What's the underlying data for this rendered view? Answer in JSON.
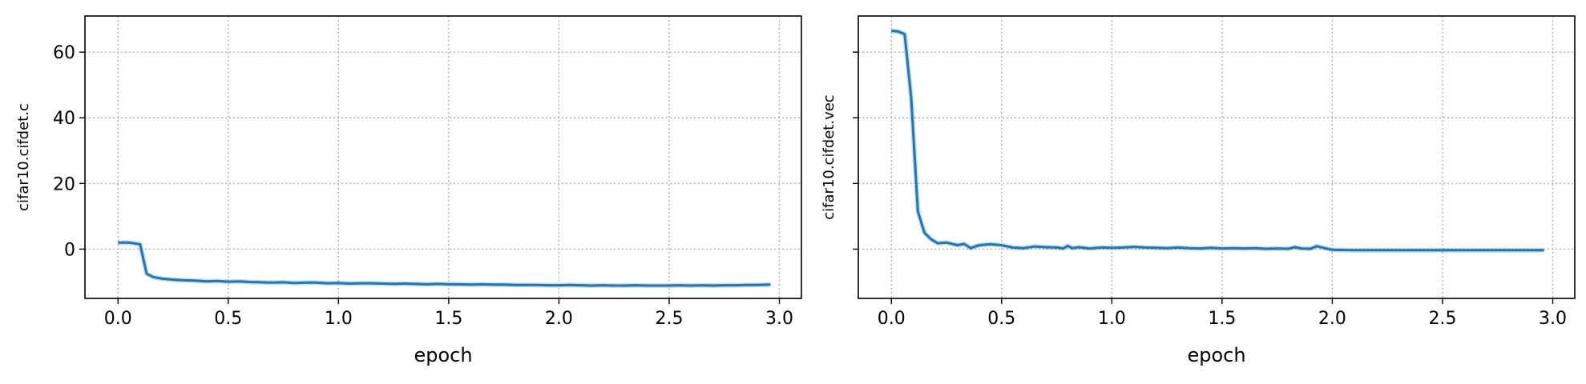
{
  "chart_data": [
    {
      "type": "line",
      "xlabel": "epoch",
      "ylabel": "cifar10.cifdet.c",
      "xlim": [
        -0.15,
        3.1
      ],
      "ylim": [
        -15,
        71
      ],
      "xticks": [
        0.0,
        0.5,
        1.0,
        1.5,
        2.0,
        2.5,
        3.0
      ],
      "xtick_labels": [
        "0.0",
        "0.5",
        "1.0",
        "1.5",
        "2.0",
        "2.5",
        "3.0"
      ],
      "yticks": [
        0,
        20,
        40,
        60
      ],
      "ytick_labels": [
        "0",
        "20",
        "40",
        "60"
      ],
      "grid": true,
      "series": [
        {
          "color": "#1f77b4",
          "x": [
            0.0,
            0.05,
            0.1,
            0.13,
            0.16,
            0.2,
            0.25,
            0.3,
            0.35,
            0.4,
            0.45,
            0.5,
            0.55,
            0.6,
            0.65,
            0.7,
            0.75,
            0.8,
            0.85,
            0.9,
            0.95,
            1.0,
            1.05,
            1.1,
            1.15,
            1.2,
            1.25,
            1.3,
            1.35,
            1.4,
            1.45,
            1.5,
            1.55,
            1.6,
            1.65,
            1.7,
            1.75,
            1.8,
            1.85,
            1.9,
            1.95,
            2.0,
            2.05,
            2.1,
            2.15,
            2.2,
            2.25,
            2.3,
            2.35,
            2.4,
            2.45,
            2.5,
            2.55,
            2.6,
            2.65,
            2.7,
            2.75,
            2.8,
            2.85,
            2.9,
            2.96
          ],
          "y": [
            2.0,
            2.0,
            1.5,
            -7.5,
            -8.5,
            -9.0,
            -9.3,
            -9.5,
            -9.6,
            -9.8,
            -9.7,
            -9.9,
            -9.8,
            -10.0,
            -10.1,
            -10.2,
            -10.1,
            -10.3,
            -10.2,
            -10.2,
            -10.4,
            -10.3,
            -10.5,
            -10.4,
            -10.4,
            -10.5,
            -10.6,
            -10.5,
            -10.6,
            -10.7,
            -10.6,
            -10.7,
            -10.7,
            -10.8,
            -10.7,
            -10.8,
            -10.8,
            -10.9,
            -10.9,
            -10.9,
            -11.0,
            -11.0,
            -10.9,
            -11.0,
            -11.1,
            -11.0,
            -11.1,
            -11.1,
            -11.0,
            -11.1,
            -11.1,
            -11.1,
            -11.0,
            -11.1,
            -11.0,
            -11.1,
            -11.0,
            -11.0,
            -10.9,
            -10.9,
            -10.8
          ]
        }
      ]
    },
    {
      "type": "line",
      "xlabel": "epoch",
      "ylabel": "cifar10.cifdet.vec",
      "xlim": [
        -0.15,
        3.1
      ],
      "ylim": [
        -15,
        71
      ],
      "xticks": [
        0.0,
        0.5,
        1.0,
        1.5,
        2.0,
        2.5,
        3.0
      ],
      "xtick_labels": [
        "0.0",
        "0.5",
        "1.0",
        "1.5",
        "2.0",
        "2.5",
        "3.0"
      ],
      "yticks": [
        0,
        20,
        40,
        60
      ],
      "ytick_labels": [],
      "grid": true,
      "series": [
        {
          "color": "#1f77b4",
          "x": [
            0.0,
            0.03,
            0.06,
            0.09,
            0.12,
            0.15,
            0.18,
            0.21,
            0.25,
            0.3,
            0.33,
            0.36,
            0.38,
            0.4,
            0.45,
            0.5,
            0.55,
            0.6,
            0.65,
            0.7,
            0.75,
            0.78,
            0.8,
            0.82,
            0.85,
            0.9,
            0.95,
            1.0,
            1.05,
            1.1,
            1.15,
            1.2,
            1.25,
            1.3,
            1.35,
            1.4,
            1.45,
            1.5,
            1.55,
            1.6,
            1.65,
            1.7,
            1.75,
            1.8,
            1.83,
            1.86,
            1.9,
            1.93,
            1.96,
            2.0,
            2.1,
            2.2,
            2.3,
            2.4,
            2.5,
            2.6,
            2.7,
            2.8,
            2.9,
            2.96
          ],
          "y": [
            66.5,
            66.3,
            65.5,
            46.0,
            11.5,
            5.0,
            3.0,
            1.8,
            2.0,
            1.2,
            1.6,
            0.3,
            0.8,
            1.2,
            1.5,
            1.2,
            0.5,
            0.3,
            0.8,
            0.6,
            0.5,
            0.2,
            1.0,
            0.3,
            0.6,
            0.2,
            0.5,
            0.4,
            0.5,
            0.7,
            0.5,
            0.4,
            0.3,
            0.5,
            0.3,
            0.2,
            0.4,
            0.2,
            0.3,
            0.2,
            0.3,
            0.1,
            0.2,
            0.1,
            0.6,
            0.2,
            0.1,
            0.9,
            0.4,
            -0.2,
            -0.3,
            -0.3,
            -0.3,
            -0.3,
            -0.3,
            -0.3,
            -0.3,
            -0.3,
            -0.3,
            -0.3
          ]
        }
      ]
    }
  ]
}
